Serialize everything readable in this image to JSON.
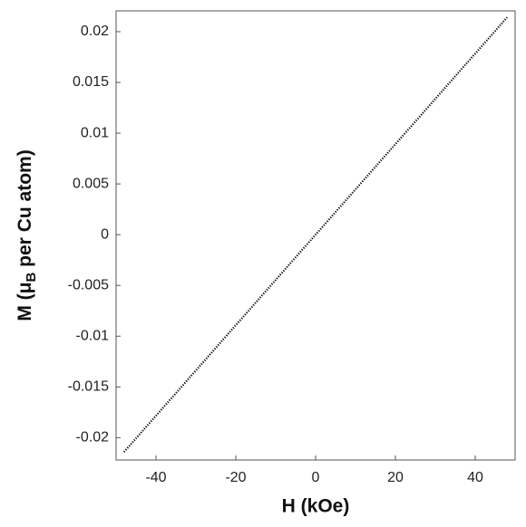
{
  "chart_data": {
    "type": "line",
    "x_label": "H (kOe)",
    "y_label": {
      "main": "M (μ",
      "subscript": "B",
      "rest": " per Cu atom)"
    },
    "x": [
      -48,
      -44,
      -40,
      -36,
      -32,
      -28,
      -24,
      -20,
      -16,
      -12,
      -8,
      -4,
      0,
      4,
      8,
      12,
      16,
      20,
      24,
      28,
      32,
      36,
      40,
      44,
      48
    ],
    "series": [
      {
        "color": "#000000",
        "values": [
          -0.02141,
          -0.01962,
          -0.01784,
          -0.01606,
          -0.01427,
          -0.01249,
          -0.0107,
          -0.00892,
          -0.00714,
          -0.00535,
          -0.00357,
          -0.00178,
          0,
          0.00178,
          0.00357,
          0.00535,
          0.00714,
          0.00892,
          0.0107,
          0.01249,
          0.01427,
          0.01606,
          0.01784,
          0.01962,
          0.02141
        ]
      }
    ],
    "xlim": [
      -50,
      50
    ],
    "ylim": [
      -0.0222,
      0.02205
    ],
    "xticks": [
      -40,
      -20,
      0,
      20,
      40
    ],
    "yticks": [
      -0.02,
      -0.015,
      -0.01,
      -0.005,
      0,
      0.005,
      0.01,
      0.015,
      0.02
    ],
    "grid": false
  }
}
